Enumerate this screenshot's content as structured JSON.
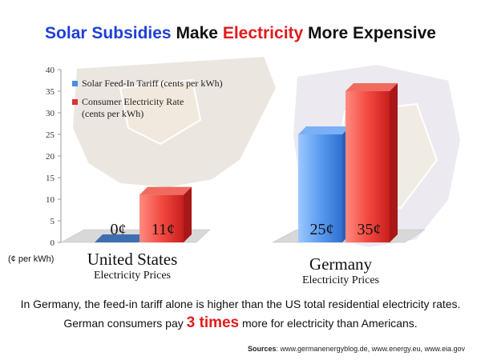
{
  "title": {
    "part1": "Solar Subsidies",
    "part2": " Make ",
    "part3": "Electricity",
    "part4": " More Expensive"
  },
  "unit_label": "(¢ per kWh)",
  "categories_display": [
    {
      "main": "United States",
      "sub": "Electricity Prices"
    },
    {
      "main": "Germany",
      "sub": "Electricity Prices"
    }
  ],
  "notes": {
    "line1": "In Germany, the feed-in tariff alone is higher than the US total residential electricity rates.",
    "line2_pre": "German consumers pay ",
    "line2_emph": "3 times",
    "line2_post": " more for electricity than Americans."
  },
  "sources": {
    "label": "Sources",
    "text": ": www.germanenergyblog.de, www.energy.eu, www.eia.gov"
  },
  "colors": {
    "solar": "#4a8fe0",
    "consumer": "#e03030",
    "title_blue": "#1f3fd8",
    "title_red": "#e21b1b"
  },
  "chart_data": {
    "type": "bar",
    "categories": [
      "United States",
      "Germany"
    ],
    "series": [
      {
        "name": "Solar Feed-In Tariff (cents per kWh)",
        "values": [
          0,
          25
        ],
        "labels": [
          "0¢",
          "25¢"
        ]
      },
      {
        "name": "Consumer Electricity Rate (cents per kWh)",
        "values": [
          11,
          35
        ],
        "labels": [
          "11¢",
          "35¢"
        ]
      }
    ],
    "yticks": [
      0,
      5,
      10,
      15,
      20,
      25,
      30,
      35,
      40
    ],
    "ylim": [
      0,
      40
    ],
    "legend": "top-left",
    "grid": false
  }
}
